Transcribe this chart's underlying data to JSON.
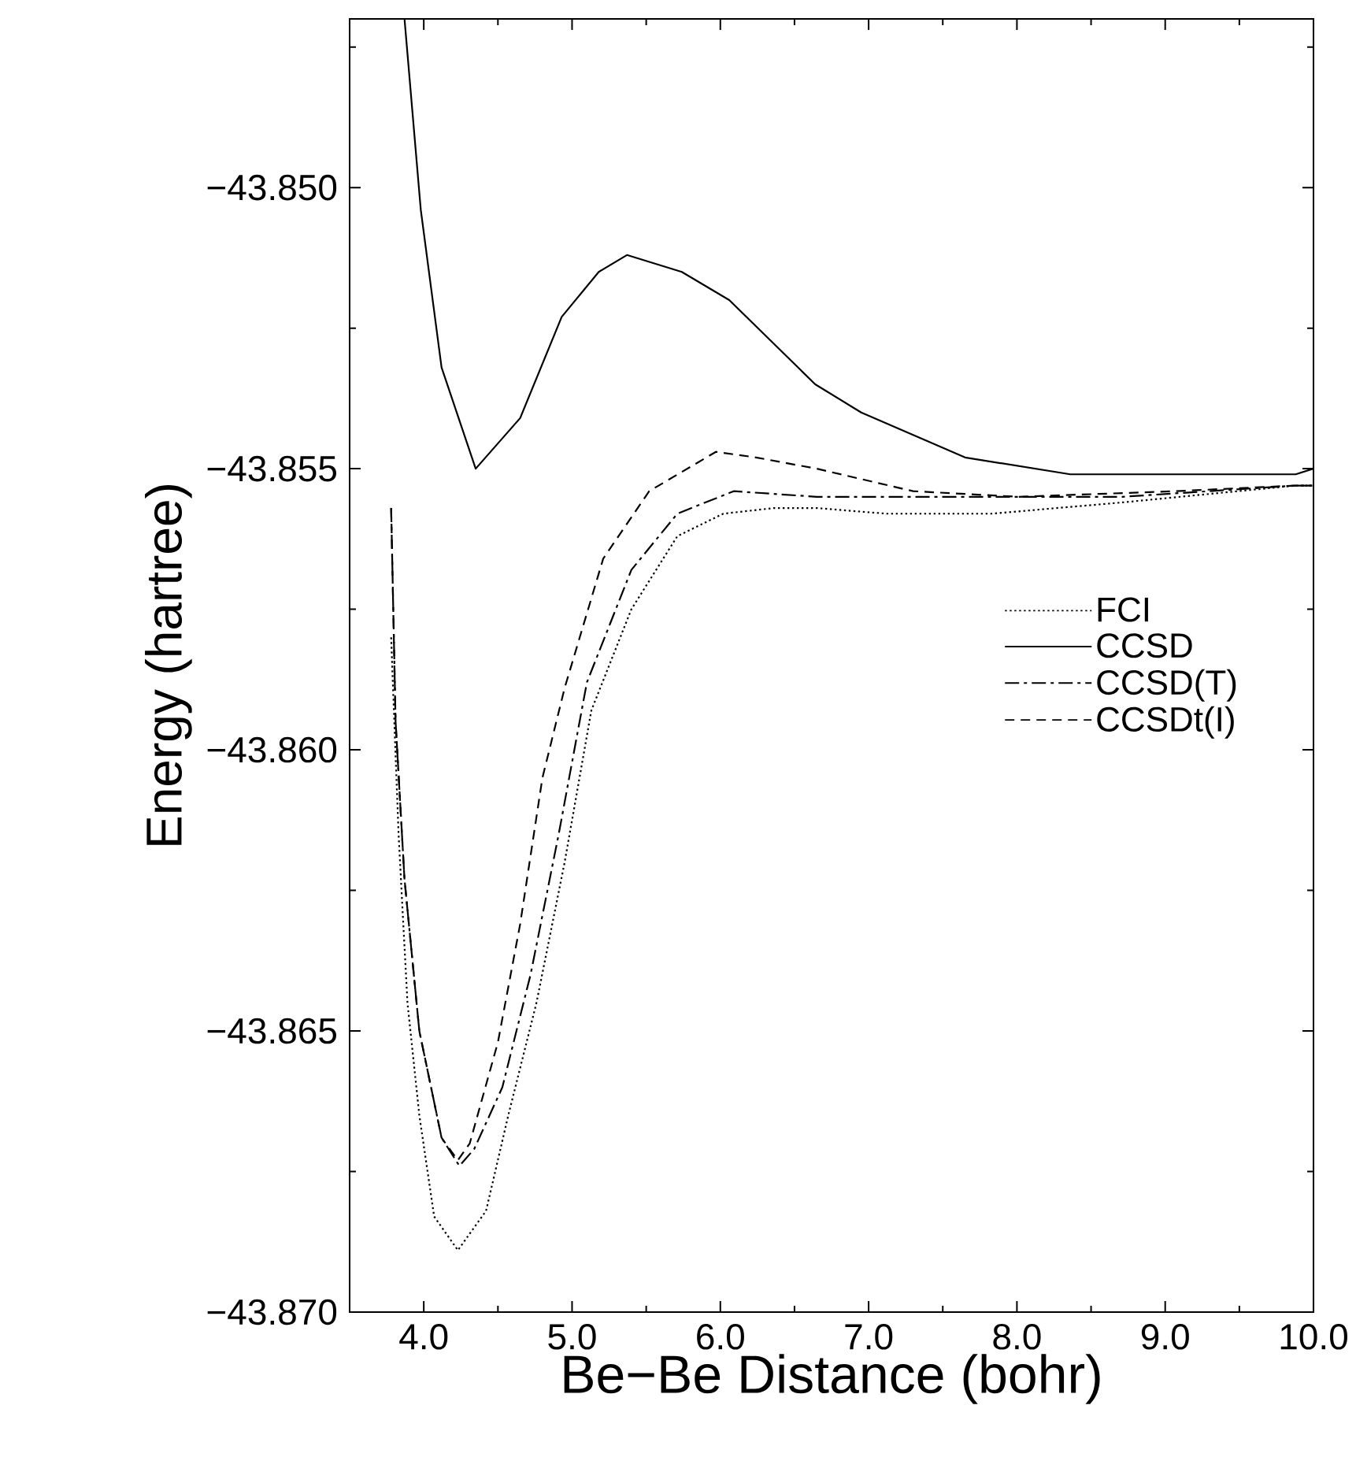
{
  "chart_data": {
    "type": "line",
    "xlabel": "Be−Be Distance (bohr)",
    "ylabel": "Energy (hartree)",
    "xlim": [
      3.5,
      10.0
    ],
    "ylim": [
      -43.87,
      -43.847
    ],
    "xticks": [
      {
        "value": 4.0,
        "label": "4.0"
      },
      {
        "value": 4.5,
        "label": null
      },
      {
        "value": 5.0,
        "label": "5.0"
      },
      {
        "value": 5.5,
        "label": null
      },
      {
        "value": 6.0,
        "label": "6.0"
      },
      {
        "value": 6.5,
        "label": null
      },
      {
        "value": 7.0,
        "label": "7.0"
      },
      {
        "value": 7.5,
        "label": null
      },
      {
        "value": 8.0,
        "label": "8.0"
      },
      {
        "value": 8.5,
        "label": null
      },
      {
        "value": 9.0,
        "label": "9.0"
      },
      {
        "value": 9.5,
        "label": null
      },
      {
        "value": 10.0,
        "label": "10.0"
      }
    ],
    "yticks": [
      {
        "value": -43.87,
        "label": "−43.870"
      },
      {
        "value": -43.8675,
        "label": null
      },
      {
        "value": -43.865,
        "label": "−43.865"
      },
      {
        "value": -43.8625,
        "label": null
      },
      {
        "value": -43.86,
        "label": "−43.860"
      },
      {
        "value": -43.8575,
        "label": null
      },
      {
        "value": -43.855,
        "label": "−43.855"
      },
      {
        "value": -43.8525,
        "label": null
      },
      {
        "value": -43.85,
        "label": "−43.850"
      },
      {
        "value": -43.8475,
        "label": null
      }
    ],
    "legend": "right",
    "grid": false,
    "marker": "none",
    "series": [
      {
        "name": "FCI",
        "color": "#000000",
        "line_style": "dotted",
        "x": [
          3.78,
          3.83,
          3.89,
          3.97,
          4.07,
          4.23,
          4.42,
          4.57,
          4.76,
          4.95,
          5.13,
          5.4,
          5.71,
          6.02,
          6.36,
          6.65,
          7.12,
          7.83,
          8.71,
          9.88,
          10.0
        ],
        "values": [
          -43.858,
          -43.8615,
          -43.8645,
          -43.8665,
          -43.8683,
          -43.8689,
          -43.8682,
          -43.8665,
          -43.8645,
          -43.862,
          -43.8593,
          -43.8575,
          -43.8562,
          -43.8558,
          -43.8557,
          -43.8557,
          -43.8558,
          -43.8558,
          -43.8556,
          -43.8553,
          -43.8553
        ]
      },
      {
        "name": "CCSD",
        "color": "#000000",
        "line_style": "solid",
        "x": [
          3.87,
          3.98,
          4.12,
          4.35,
          4.65,
          4.93,
          5.18,
          5.37,
          5.74,
          6.06,
          6.64,
          6.95,
          7.65,
          8.36,
          8.68,
          9.88,
          10.0
        ],
        "values": [
          -43.847,
          -43.8504,
          -43.8532,
          -43.855,
          -43.8541,
          -43.8523,
          -43.8515,
          -43.8512,
          -43.8515,
          -43.852,
          -43.8535,
          -43.854,
          -43.8548,
          -43.8551,
          -43.8551,
          -43.8551,
          -43.855
        ]
      },
      {
        "name": "CCSD(T)",
        "color": "#000000",
        "line_style": "dashdot",
        "x": [
          3.78,
          3.81,
          3.87,
          3.97,
          4.12,
          4.24,
          4.34,
          4.53,
          4.72,
          4.91,
          5.1,
          5.4,
          5.71,
          6.09,
          6.65,
          7.65,
          8.71,
          9.88,
          10.0
        ],
        "values": [
          -43.8557,
          -43.8595,
          -43.8623,
          -43.865,
          -43.8669,
          -43.8674,
          -43.8671,
          -43.866,
          -43.864,
          -43.8615,
          -43.8588,
          -43.8568,
          -43.8558,
          -43.8554,
          -43.8555,
          -43.8555,
          -43.8555,
          -43.8553,
          -43.8553
        ]
      },
      {
        "name": "CCSDt(I)",
        "color": "#000000",
        "line_style": "dashed",
        "x": [
          3.78,
          3.81,
          3.87,
          3.97,
          4.12,
          4.23,
          4.31,
          4.5,
          4.65,
          4.8,
          4.95,
          5.21,
          5.52,
          5.97,
          6.24,
          6.65,
          7.3,
          8.01,
          9.07,
          9.88,
          10.0
        ],
        "values": [
          -43.8557,
          -43.8595,
          -43.8623,
          -43.865,
          -43.8669,
          -43.8673,
          -43.867,
          -43.8652,
          -43.8631,
          -43.8605,
          -43.8589,
          -43.8566,
          -43.8554,
          -43.8547,
          -43.8548,
          -43.855,
          -43.8554,
          -43.8555,
          -43.8554,
          -43.8553,
          -43.8553
        ]
      }
    ]
  }
}
